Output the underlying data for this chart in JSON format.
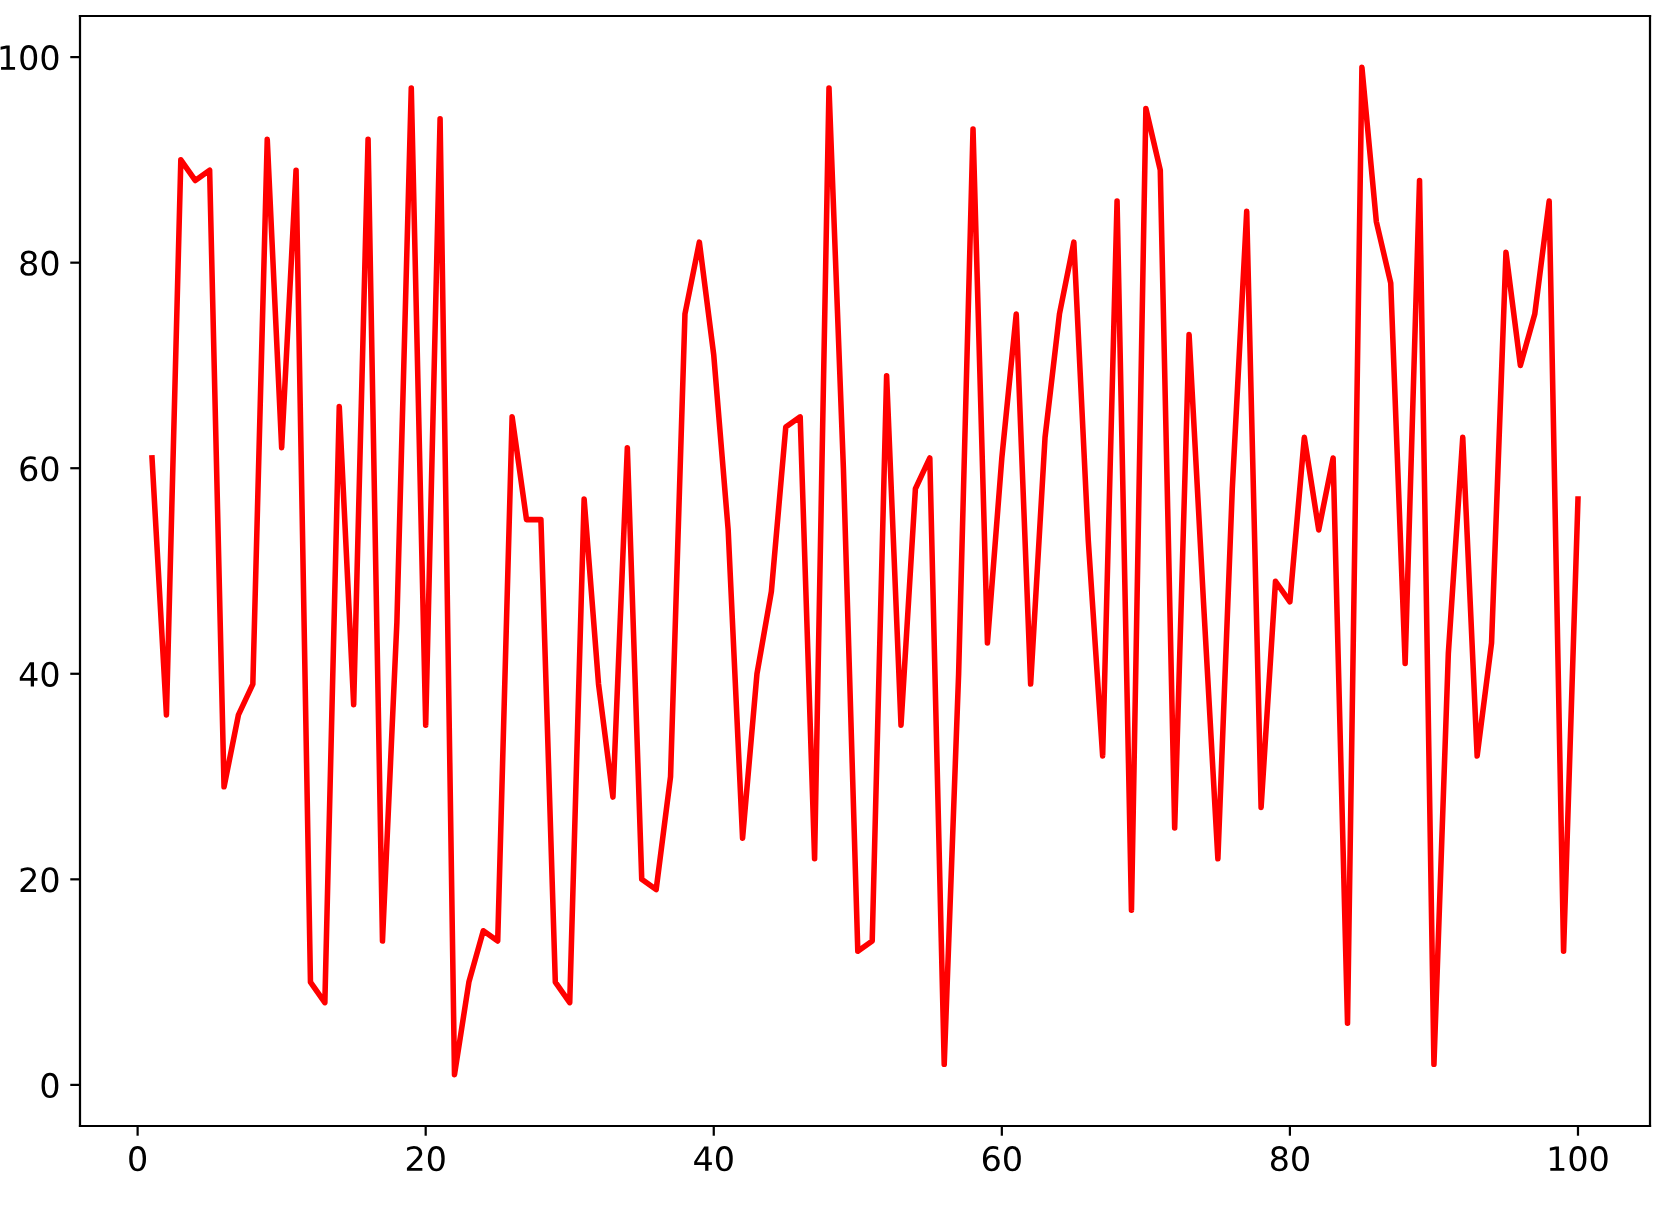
{
  "chart_data": {
    "type": "line",
    "x": [
      1,
      2,
      3,
      4,
      5,
      6,
      7,
      8,
      9,
      10,
      11,
      12,
      13,
      14,
      15,
      16,
      17,
      18,
      19,
      20,
      21,
      22,
      23,
      24,
      25,
      26,
      27,
      28,
      29,
      30,
      31,
      32,
      33,
      34,
      35,
      36,
      37,
      38,
      39,
      40,
      41,
      42,
      43,
      44,
      45,
      46,
      47,
      48,
      49,
      50,
      51,
      52,
      53,
      54,
      55,
      56,
      57,
      58,
      59,
      60,
      61,
      62,
      63,
      64,
      65,
      66,
      67,
      68,
      69,
      70,
      71,
      72,
      73,
      74,
      75,
      76,
      77,
      78,
      79,
      80,
      81,
      82,
      83,
      84,
      85,
      86,
      87,
      88,
      89,
      90,
      91,
      92,
      93,
      94,
      95,
      96,
      97,
      98,
      99,
      100
    ],
    "series": [
      {
        "color": "#ff0000",
        "values": [
          61,
          36,
          90,
          88,
          89,
          29,
          36,
          39,
          92,
          62,
          89,
          10,
          8,
          66,
          37,
          92,
          14,
          45,
          97,
          35,
          94,
          1,
          10,
          15,
          14,
          65,
          55,
          55,
          10,
          8,
          57,
          39,
          28,
          62,
          20,
          19,
          30,
          75,
          82,
          71,
          54,
          24,
          40,
          48,
          64,
          65,
          22,
          97,
          60,
          13,
          14,
          69,
          35,
          58,
          61,
          2,
          40,
          93,
          43,
          61,
          75,
          39,
          63,
          75,
          82,
          53,
          32,
          86,
          17,
          95,
          89,
          25,
          73,
          47,
          22,
          58,
          85,
          27,
          49,
          47,
          63,
          54,
          61,
          6,
          99,
          84,
          78,
          41,
          88,
          2,
          42,
          63,
          32,
          43,
          81,
          70,
          75,
          86,
          13,
          57
        ]
      }
    ],
    "xlim": [
      -4,
      105
    ],
    "ylim": [
      -4,
      104
    ],
    "xticks": [
      0,
      20,
      40,
      60,
      80,
      100
    ],
    "yticks": [
      0,
      20,
      40,
      60,
      80,
      100
    ],
    "grid": false,
    "legend": false,
    "marker": "none",
    "line_style": "solid"
  }
}
